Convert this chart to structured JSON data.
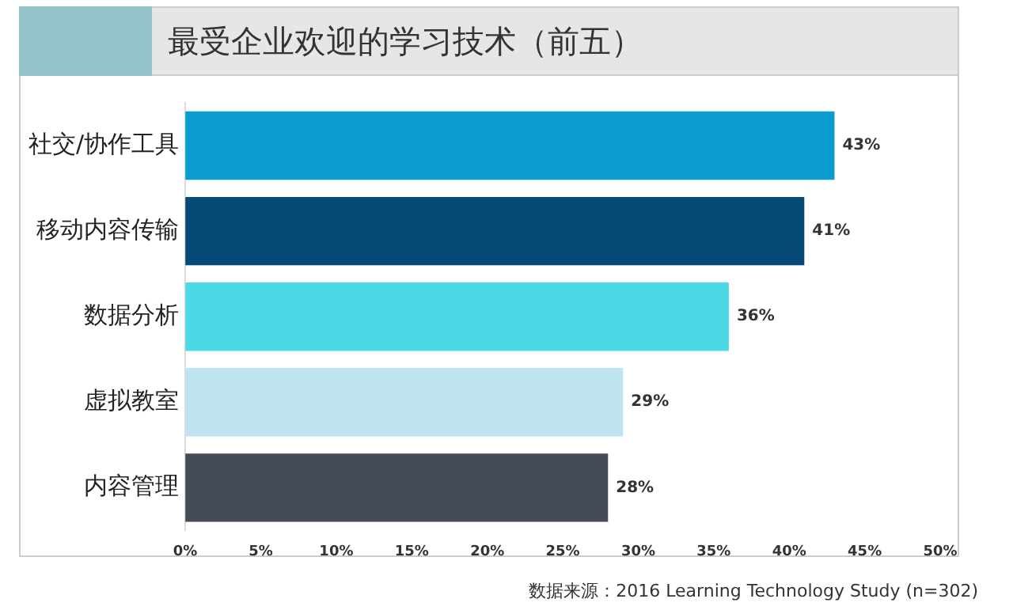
{
  "chart_data": {
    "type": "bar",
    "orientation": "horizontal",
    "title": "最受企业欢迎的学习技术（前五）",
    "categories": [
      "社交/协作工具",
      "移动内容传输",
      "数据分析",
      "虚拟教室",
      "内容管理"
    ],
    "values": [
      43,
      41,
      36,
      29,
      28
    ],
    "colors": [
      "#0a9bcf",
      "#064a78",
      "#4dd8e6",
      "#bfe3f0",
      "#464c55"
    ],
    "value_labels": [
      "43%",
      "41%",
      "36%",
      "29%",
      "28%"
    ],
    "xlim": [
      0,
      50
    ],
    "xticks": [
      {
        "value": 0,
        "label": "0%"
      },
      {
        "value": 5,
        "label": "5%"
      },
      {
        "value": 10,
        "label": "10%"
      },
      {
        "value": 15,
        "label": "15%"
      },
      {
        "value": 20,
        "label": "20%"
      },
      {
        "value": 25,
        "label": "25%"
      },
      {
        "value": 30,
        "label": "30%"
      },
      {
        "value": 35,
        "label": "35%"
      },
      {
        "value": 40,
        "label": "40%"
      },
      {
        "value": 45,
        "label": "45%"
      },
      {
        "value": 50,
        "label": "50%"
      }
    ],
    "grid": false,
    "legend": false,
    "annotations": [
      "数据来源：2016 Learning Technology Study (n=302)"
    ]
  }
}
